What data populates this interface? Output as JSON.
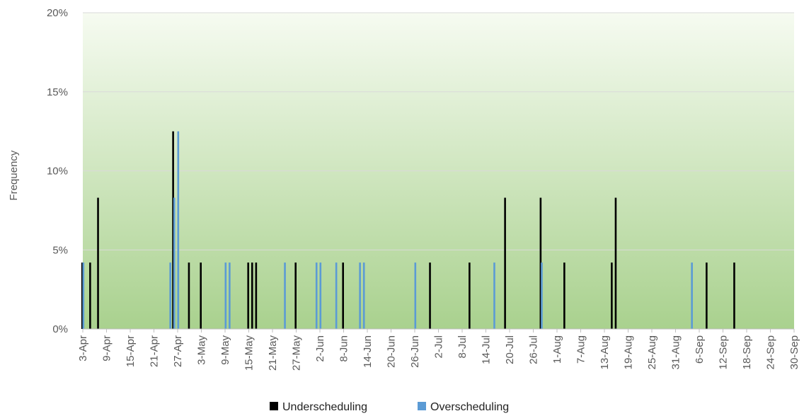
{
  "chart_data": {
    "type": "bar",
    "xlabel": "",
    "ylabel": "Frequency",
    "ylim": [
      0,
      20
    ],
    "y_ticks": [
      "0%",
      "5%",
      "10%",
      "15%",
      "20%"
    ],
    "x_range": [
      "3-Apr",
      "30-Sep"
    ],
    "x_ticks": [
      "3-Apr",
      "9-Apr",
      "15-Apr",
      "21-Apr",
      "27-Apr",
      "3-May",
      "9-May",
      "15-May",
      "21-May",
      "27-May",
      "2-Jun",
      "8-Jun",
      "14-Jun",
      "20-Jun",
      "26-Jun",
      "2-Jul",
      "8-Jul",
      "14-Jul",
      "20-Jul",
      "26-Jul",
      "1-Aug",
      "7-Aug",
      "13-Aug",
      "19-Aug",
      "25-Aug",
      "31-Aug",
      "6-Sep",
      "12-Sep",
      "18-Sep",
      "24-Sep",
      "30-Sep"
    ],
    "grid": true,
    "legend_position": "bottom",
    "series": [
      {
        "name": "Underscheduling",
        "color": "#000000",
        "points": [
          {
            "x": "3-Apr",
            "y": 4.2
          },
          {
            "x": "5-Apr",
            "y": 4.2
          },
          {
            "x": "7-Apr",
            "y": 8.3
          },
          {
            "x": "26-Apr",
            "y": 12.5
          },
          {
            "x": "30-Apr",
            "y": 4.2
          },
          {
            "x": "3-May",
            "y": 4.2
          },
          {
            "x": "15-May",
            "y": 4.2
          },
          {
            "x": "16-May",
            "y": 4.2
          },
          {
            "x": "17-May",
            "y": 4.2
          },
          {
            "x": "27-May",
            "y": 4.2
          },
          {
            "x": "8-Jun",
            "y": 4.2
          },
          {
            "x": "30-Jun",
            "y": 4.2
          },
          {
            "x": "10-Jul",
            "y": 4.2
          },
          {
            "x": "19-Jul",
            "y": 8.3
          },
          {
            "x": "28-Jul",
            "y": 8.3
          },
          {
            "x": "3-Aug",
            "y": 4.2
          },
          {
            "x": "15-Aug",
            "y": 4.2
          },
          {
            "x": "16-Aug",
            "y": 8.3
          },
          {
            "x": "8-Sep",
            "y": 4.2
          },
          {
            "x": "15-Sep",
            "y": 4.2
          }
        ]
      },
      {
        "name": "Overscheduling",
        "color": "#5B9BD5",
        "points": [
          {
            "x": "3-Apr",
            "y": 4.2
          },
          {
            "x": "25-Apr",
            "y": 4.2
          },
          {
            "x": "26-Apr",
            "y": 8.3
          },
          {
            "x": "27-Apr",
            "y": 12.5
          },
          {
            "x": "9-May",
            "y": 4.2
          },
          {
            "x": "10-May",
            "y": 4.2
          },
          {
            "x": "24-May",
            "y": 4.2
          },
          {
            "x": "1-Jun",
            "y": 4.2
          },
          {
            "x": "2-Jun",
            "y": 4.2
          },
          {
            "x": "6-Jun",
            "y": 4.2
          },
          {
            "x": "12-Jun",
            "y": 4.2
          },
          {
            "x": "13-Jun",
            "y": 4.2
          },
          {
            "x": "26-Jun",
            "y": 4.2
          },
          {
            "x": "16-Jul",
            "y": 4.2
          },
          {
            "x": "28-Jul",
            "y": 4.2
          },
          {
            "x": "4-Sep",
            "y": 4.2
          }
        ]
      }
    ]
  }
}
